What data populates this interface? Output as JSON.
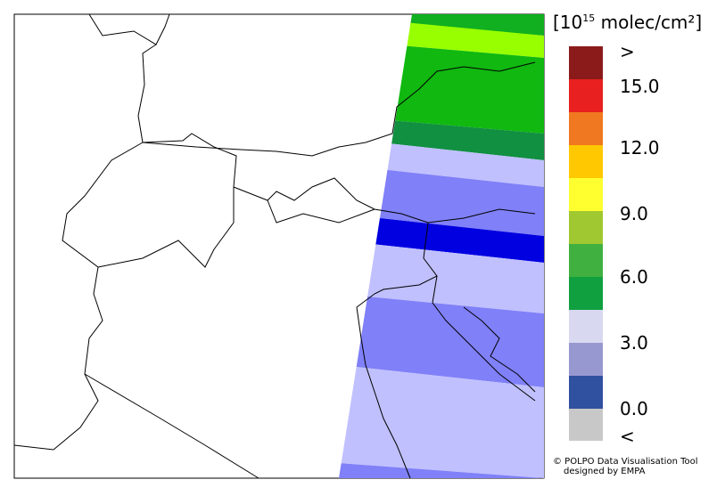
{
  "legend": {
    "unit": {
      "open": "[10",
      "exponent": "15",
      "rest": " molec/cm²]"
    },
    "labels": [
      ">",
      "15.0",
      "12.0",
      "9.0",
      "6.0",
      "3.0",
      "0.0",
      "<"
    ]
  },
  "credits": [
    "© POLPO Data Visualisation Tool",
    "designed by EMPA"
  ]
}
